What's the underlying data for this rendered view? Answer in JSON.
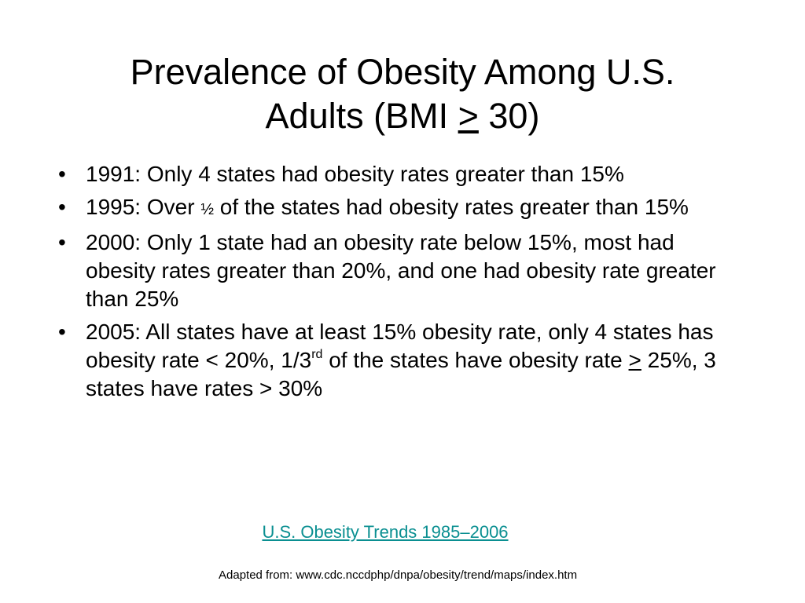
{
  "slide": {
    "title_line1": "Prevalence of Obesity Among U.S.",
    "title_line2_pre": "Adults (BMI ",
    "title_line2_symbol": ">",
    "title_line2_post": " 30)",
    "bullet_char": "•",
    "bullets": [
      {
        "text": "1991: Only 4 states had obesity rates greater than 15%"
      },
      {
        "pre": "1995: Over ",
        "half": "½",
        "post": " of the states had obesity rates greater than 15%"
      },
      {
        "text": "2000:  Only 1 state had an obesity rate below 15%, most had obesity rates greater than 20%, and one had obesity rate greater than 25%"
      },
      {
        "pre": "2005: All states have at least 15% obesity rate, only 4 states has obesity rate < 20%, 1/3",
        "sup": "rd",
        "mid": " of the states have obesity rate ",
        "symbol": ">",
        "post": " 25%, 3 states have rates > 30%"
      }
    ],
    "link_text": "U.S. Obesity Trends 1985–2006",
    "source_text": "Adapted from: www.cdc.nccdphp/dnpa/obesity/trend/maps/index.htm"
  },
  "colors": {
    "link": "#0a8f91",
    "text": "#000000",
    "background": "#ffffff"
  }
}
